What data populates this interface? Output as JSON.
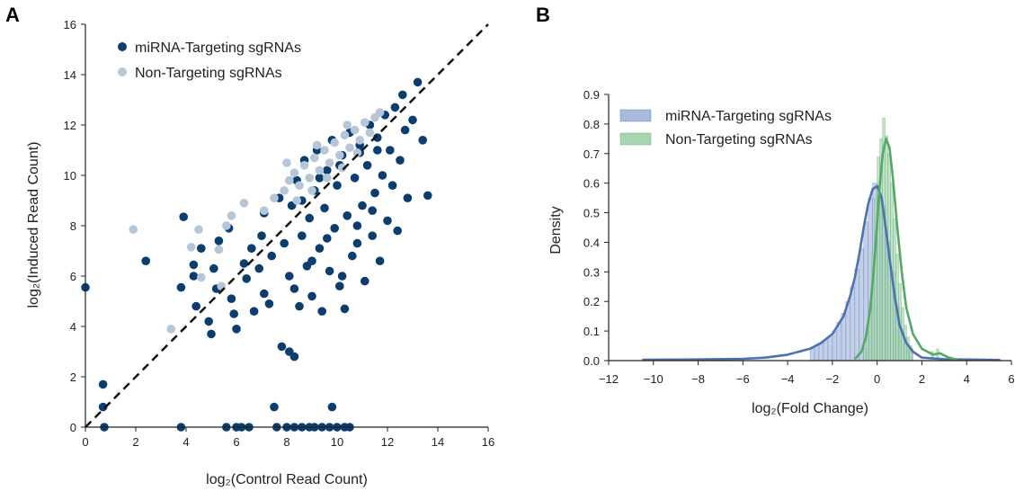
{
  "chart_data": [
    {
      "panel_label": "A",
      "type": "scatter",
      "xlabel": "log₂(Control Read Count)",
      "ylabel": "log₂(Induced Read Count)",
      "xlim": [
        0,
        16
      ],
      "ylim": [
        0,
        16
      ],
      "xticks": [
        "0",
        "2",
        "4",
        "6",
        "8",
        "10",
        "12",
        "14",
        "16"
      ],
      "yticks": [
        "0",
        "2",
        "4",
        "6",
        "8",
        "10",
        "12",
        "14",
        "16"
      ],
      "legend_placement": "top-left",
      "reference_line": {
        "style": "dashed",
        "from": [
          0,
          0
        ],
        "to": [
          16,
          16
        ],
        "color": "#111111"
      },
      "series": [
        {
          "name": "miRNA-Targeting sgRNAs",
          "color": "#0b3d6e",
          "points": [
            [
              0.0,
              5.55
            ],
            [
              0.7,
              0.8
            ],
            [
              0.7,
              1.7
            ],
            [
              0.75,
              0.0
            ],
            [
              3.8,
              0.0
            ],
            [
              2.4,
              6.6
            ],
            [
              3.9,
              8.35
            ],
            [
              3.8,
              5.55
            ],
            [
              4.3,
              6.0
            ],
            [
              4.3,
              6.45
            ],
            [
              4.4,
              4.8
            ],
            [
              4.6,
              7.1
            ],
            [
              4.9,
              4.2
            ],
            [
              5.0,
              3.7
            ],
            [
              5.1,
              6.3
            ],
            [
              5.2,
              5.5
            ],
            [
              5.3,
              7.4
            ],
            [
              5.7,
              7.9
            ],
            [
              5.8,
              5.1
            ],
            [
              5.9,
              4.5
            ],
            [
              6.0,
              3.9
            ],
            [
              6.3,
              6.5
            ],
            [
              6.4,
              5.9
            ],
            [
              6.6,
              7.1
            ],
            [
              6.7,
              4.6
            ],
            [
              6.9,
              6.3
            ],
            [
              7.0,
              7.6
            ],
            [
              7.1,
              5.3
            ],
            [
              7.1,
              8.5
            ],
            [
              7.3,
              4.9
            ],
            [
              7.4,
              6.8
            ],
            [
              7.5,
              0.8
            ],
            [
              7.7,
              9.1
            ],
            [
              7.8,
              3.2
            ],
            [
              7.9,
              7.3
            ],
            [
              8.1,
              3.0
            ],
            [
              8.1,
              6.0
            ],
            [
              8.2,
              8.8
            ],
            [
              8.3,
              5.5
            ],
            [
              8.3,
              2.8
            ],
            [
              8.4,
              9.8
            ],
            [
              8.5,
              4.8
            ],
            [
              8.6,
              7.6
            ],
            [
              8.7,
              10.6
            ],
            [
              8.8,
              6.4
            ],
            [
              8.9,
              8.3
            ],
            [
              9.0,
              5.2
            ],
            [
              9.1,
              9.4
            ],
            [
              9.2,
              11.0
            ],
            [
              9.3,
              7.1
            ],
            [
              9.4,
              4.6
            ],
            [
              9.5,
              8.7
            ],
            [
              9.6,
              10.2
            ],
            [
              9.7,
              6.2
            ],
            [
              9.8,
              0.8
            ],
            [
              9.8,
              11.4
            ],
            [
              9.9,
              7.9
            ],
            [
              10.0,
              9.6
            ],
            [
              10.1,
              5.6
            ],
            [
              10.2,
              10.8
            ],
            [
              10.3,
              4.7
            ],
            [
              10.4,
              8.4
            ],
            [
              10.5,
              11.7
            ],
            [
              10.6,
              6.8
            ],
            [
              10.7,
              9.9
            ],
            [
              10.8,
              7.3
            ],
            [
              10.9,
              11.2
            ],
            [
              11.0,
              8.8
            ],
            [
              11.1,
              5.8
            ],
            [
              11.2,
              10.4
            ],
            [
              11.3,
              12.0
            ],
            [
              11.4,
              7.6
            ],
            [
              11.5,
              9.3
            ],
            [
              11.6,
              11.5
            ],
            [
              11.7,
              6.6
            ],
            [
              11.8,
              10.0
            ],
            [
              11.9,
              12.4
            ],
            [
              12.0,
              8.2
            ],
            [
              12.1,
              11.0
            ],
            [
              12.2,
              9.6
            ],
            [
              12.3,
              12.7
            ],
            [
              12.4,
              7.8
            ],
            [
              12.5,
              10.6
            ],
            [
              12.6,
              13.2
            ],
            [
              12.7,
              11.8
            ],
            [
              12.8,
              9.1
            ],
            [
              13.2,
              13.7
            ],
            [
              13.4,
              11.4
            ],
            [
              13.6,
              9.2
            ],
            [
              13.0,
              12.2
            ],
            [
              5.6,
              0.0
            ],
            [
              6.0,
              0.0
            ],
            [
              6.2,
              0.0
            ],
            [
              6.5,
              0.0
            ],
            [
              7.6,
              0.0
            ],
            [
              8.0,
              0.0
            ],
            [
              8.3,
              0.0
            ],
            [
              8.6,
              0.0
            ],
            [
              8.9,
              0.0
            ],
            [
              9.1,
              0.0
            ],
            [
              9.4,
              0.0
            ],
            [
              9.7,
              0.0
            ],
            [
              10.0,
              0.0
            ],
            [
              10.3,
              0.0
            ],
            [
              10.5,
              0.0
            ],
            [
              9.0,
              6.6
            ],
            [
              9.6,
              7.5
            ],
            [
              10.2,
              6.0
            ],
            [
              10.8,
              8.0
            ],
            [
              11.4,
              8.6
            ],
            [
              8.6,
              9.0
            ],
            [
              9.3,
              9.9
            ],
            [
              10.1,
              10.4
            ],
            [
              10.9,
              10.9
            ],
            [
              11.6,
              11.0
            ]
          ]
        },
        {
          "name": "Non-Targeting sgRNAs",
          "color": "#b4c6d8",
          "points": [
            [
              1.9,
              7.85
            ],
            [
              3.4,
              3.9
            ],
            [
              4.2,
              7.15
            ],
            [
              4.5,
              7.85
            ],
            [
              4.6,
              5.95
            ],
            [
              5.3,
              7.05
            ],
            [
              5.6,
              8.0
            ],
            [
              5.4,
              5.6
            ],
            [
              6.3,
              8.9
            ],
            [
              5.8,
              8.4
            ],
            [
              7.1,
              8.6
            ],
            [
              7.5,
              9.1
            ],
            [
              7.9,
              9.4
            ],
            [
              8.1,
              9.8
            ],
            [
              8.3,
              10.1
            ],
            [
              8.5,
              9.6
            ],
            [
              8.7,
              10.4
            ],
            [
              8.9,
              9.9
            ],
            [
              9.1,
              10.7
            ],
            [
              9.3,
              10.2
            ],
            [
              9.5,
              11.0
            ],
            [
              9.7,
              10.5
            ],
            [
              9.9,
              11.3
            ],
            [
              10.1,
              10.8
            ],
            [
              10.3,
              11.6
            ],
            [
              10.5,
              11.1
            ],
            [
              10.7,
              11.8
            ],
            [
              10.9,
              11.4
            ],
            [
              11.1,
              12.1
            ],
            [
              11.3,
              11.7
            ],
            [
              11.5,
              12.3
            ],
            [
              11.7,
              12.5
            ],
            [
              8.4,
              9.0
            ],
            [
              9.0,
              9.4
            ],
            [
              9.6,
              9.9
            ],
            [
              10.2,
              10.3
            ],
            [
              10.8,
              10.9
            ],
            [
              8.0,
              10.5
            ],
            [
              9.2,
              11.2
            ],
            [
              10.4,
              12.0
            ]
          ]
        }
      ]
    },
    {
      "panel_label": "B",
      "type": "histogram_density",
      "xlabel": "log₂(Fold Change)",
      "ylabel": "Density",
      "xlim": [
        -12,
        6
      ],
      "ylim": [
        0,
        0.9
      ],
      "xticks": [
        "−12",
        "−10",
        "−8",
        "−6",
        "−4",
        "−2",
        "0",
        "2",
        "4",
        "6"
      ],
      "yticks": [
        "0.0",
        "0.1",
        "0.2",
        "0.3",
        "0.4",
        "0.5",
        "0.6",
        "0.7",
        "0.8",
        "0.9"
      ],
      "legend_placement": "top-left",
      "series": [
        {
          "name": "miRNA-Targeting sgRNAs",
          "line_color": "#4c72b0",
          "fill_color": "#a9bbdd",
          "kde": [
            [
              -10.5,
              0.003
            ],
            [
              -8,
              0.004
            ],
            [
              -6,
              0.006
            ],
            [
              -5,
              0.01
            ],
            [
              -4,
              0.02
            ],
            [
              -3,
              0.04
            ],
            [
              -2.5,
              0.06
            ],
            [
              -2,
              0.09
            ],
            [
              -1.5,
              0.15
            ],
            [
              -1.2,
              0.22
            ],
            [
              -1.0,
              0.28
            ],
            [
              -0.8,
              0.36
            ],
            [
              -0.6,
              0.45
            ],
            [
              -0.4,
              0.53
            ],
            [
              -0.2,
              0.58
            ],
            [
              0.0,
              0.59
            ],
            [
              0.2,
              0.55
            ],
            [
              0.4,
              0.44
            ],
            [
              0.6,
              0.32
            ],
            [
              0.8,
              0.21
            ],
            [
              1.0,
              0.12
            ],
            [
              1.3,
              0.06
            ],
            [
              1.6,
              0.03
            ],
            [
              2.0,
              0.01
            ],
            [
              3.0,
              0.005
            ],
            [
              5.5,
              0.002
            ]
          ],
          "histogram": {
            "bin_width": 0.2,
            "bins": [
              [
                -3.0,
                0.04
              ],
              [
                -2.8,
                0.05
              ],
              [
                -2.6,
                0.06
              ],
              [
                -2.4,
                0.07
              ],
              [
                -2.2,
                0.08
              ],
              [
                -2.0,
                0.1
              ],
              [
                -1.8,
                0.13
              ],
              [
                -1.6,
                0.16
              ],
              [
                -1.4,
                0.2
              ],
              [
                -1.2,
                0.25
              ],
              [
                -1.0,
                0.31
              ],
              [
                -0.8,
                0.38
              ],
              [
                -0.6,
                0.47
              ],
              [
                -0.4,
                0.55
              ],
              [
                -0.2,
                0.6
              ],
              [
                0.0,
                0.57
              ],
              [
                0.2,
                0.52
              ],
              [
                0.4,
                0.4
              ],
              [
                0.6,
                0.3
              ],
              [
                0.8,
                0.18
              ],
              [
                1.0,
                0.1
              ],
              [
                1.2,
                0.06
              ],
              [
                1.4,
                0.04
              ]
            ]
          }
        },
        {
          "name": "Non-Targeting sgRNAs",
          "line_color": "#55a868",
          "fill_color": "#a6d5b0",
          "kde": [
            [
              -1.0,
              0.005
            ],
            [
              -0.7,
              0.03
            ],
            [
              -0.5,
              0.08
            ],
            [
              -0.3,
              0.18
            ],
            [
              -0.1,
              0.36
            ],
            [
              0.1,
              0.58
            ],
            [
              0.25,
              0.7
            ],
            [
              0.4,
              0.75
            ],
            [
              0.55,
              0.72
            ],
            [
              0.7,
              0.62
            ],
            [
              0.9,
              0.45
            ],
            [
              1.1,
              0.3
            ],
            [
              1.3,
              0.18
            ],
            [
              1.6,
              0.09
            ],
            [
              2.0,
              0.04
            ],
            [
              2.5,
              0.02
            ],
            [
              2.8,
              0.025
            ],
            [
              3.2,
              0.01
            ],
            [
              3.6,
              0.003
            ]
          ],
          "histogram": {
            "bin_width": 0.12,
            "bins": [
              [
                -0.6,
                0.04
              ],
              [
                -0.48,
                0.1
              ],
              [
                -0.36,
                0.2
              ],
              [
                -0.24,
                0.36
              ],
              [
                -0.12,
                0.55
              ],
              [
                0.0,
                0.69
              ],
              [
                0.12,
                0.75
              ],
              [
                0.24,
                0.82
              ],
              [
                0.36,
                0.76
              ],
              [
                0.48,
                0.7
              ],
              [
                0.6,
                0.6
              ],
              [
                0.72,
                0.48
              ],
              [
                0.84,
                0.36
              ],
              [
                0.96,
                0.26
              ],
              [
                1.08,
                0.18
              ],
              [
                1.2,
                0.12
              ],
              [
                1.32,
                0.08
              ],
              [
                1.44,
                0.05
              ],
              [
                2.4,
                0.03
              ],
              [
                2.64,
                0.04
              ]
            ]
          }
        }
      ]
    }
  ]
}
